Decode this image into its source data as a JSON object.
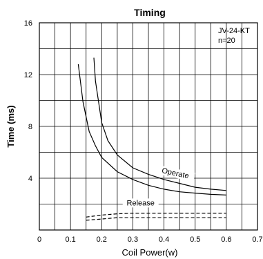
{
  "chart_data": {
    "type": "line",
    "title": "Timing",
    "xlabel": "Coil Power(w)",
    "ylabel": "Time (ms)",
    "xlim": [
      0,
      0.7
    ],
    "ylim": [
      0,
      16
    ],
    "x_ticks": [
      "0",
      "0.1",
      "0.2",
      "0.3",
      "0.4",
      "0.5",
      "0.6",
      "0.7"
    ],
    "y_ticks": [
      "4",
      "8",
      "12",
      "16"
    ],
    "grid": true,
    "annotations": [
      "JV-24-KT",
      "n=20"
    ],
    "series": [
      {
        "name": "Operate",
        "style": "solid",
        "x": [
          0.175,
          0.18,
          0.2,
          0.22,
          0.25,
          0.3,
          0.35,
          0.4,
          0.45,
          0.5,
          0.55,
          0.6
        ],
        "y": [
          13.3,
          11.5,
          8.3,
          6.9,
          5.8,
          4.8,
          4.3,
          3.9,
          3.6,
          3.3,
          3.15,
          3.05
        ]
      },
      {
        "name": "",
        "style": "solid",
        "x": [
          0.125,
          0.14,
          0.16,
          0.18,
          0.2,
          0.25,
          0.3,
          0.35,
          0.4,
          0.45,
          0.5,
          0.55,
          0.6
        ],
        "y": [
          12.8,
          9.9,
          7.6,
          6.5,
          5.6,
          4.5,
          3.9,
          3.45,
          3.15,
          2.95,
          2.85,
          2.75,
          2.7
        ]
      },
      {
        "name": "Release",
        "style": "dashed",
        "x": [
          0.15,
          0.2,
          0.25,
          0.3,
          0.4,
          0.5,
          0.6
        ],
        "y": [
          1.0,
          1.15,
          1.25,
          1.3,
          1.3,
          1.3,
          1.3
        ]
      },
      {
        "name": "",
        "style": "dashed",
        "x": [
          0.15,
          0.2,
          0.25,
          0.3,
          0.4,
          0.5,
          0.6
        ],
        "y": [
          0.75,
          0.85,
          0.95,
          0.95,
          0.95,
          0.95,
          0.95
        ]
      }
    ]
  }
}
